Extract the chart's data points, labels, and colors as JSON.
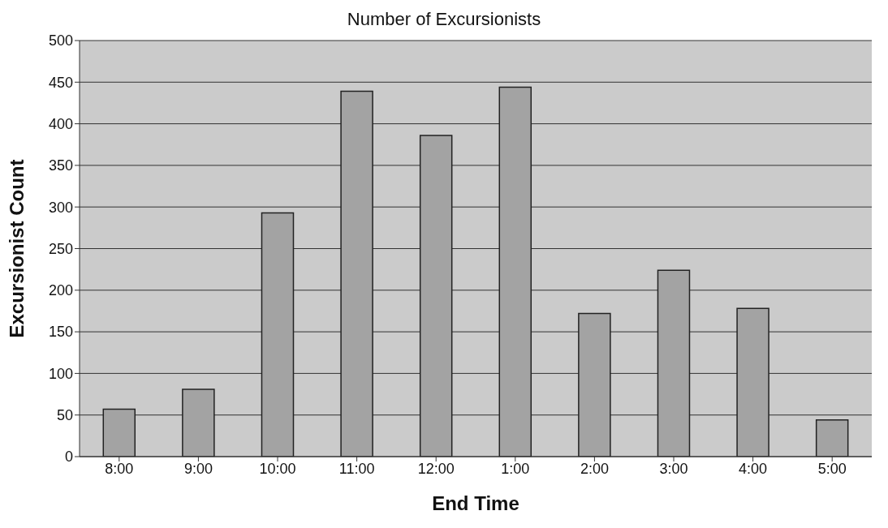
{
  "chart_data": {
    "type": "bar",
    "title": "Number of Excursionists",
    "xlabel": "End Time",
    "ylabel": "Excursionist Count",
    "categories": [
      "8:00",
      "9:00",
      "10:00",
      "11:00",
      "12:00",
      "1:00",
      "2:00",
      "3:00",
      "4:00",
      "5:00"
    ],
    "values": [
      57,
      81,
      293,
      439,
      386,
      444,
      172,
      224,
      178,
      44
    ],
    "color": "#a3a3a3",
    "ylim": [
      0,
      500
    ],
    "yticks": [
      0,
      50,
      100,
      150,
      200,
      250,
      300,
      350,
      400,
      450,
      500
    ],
    "grid": "y"
  }
}
